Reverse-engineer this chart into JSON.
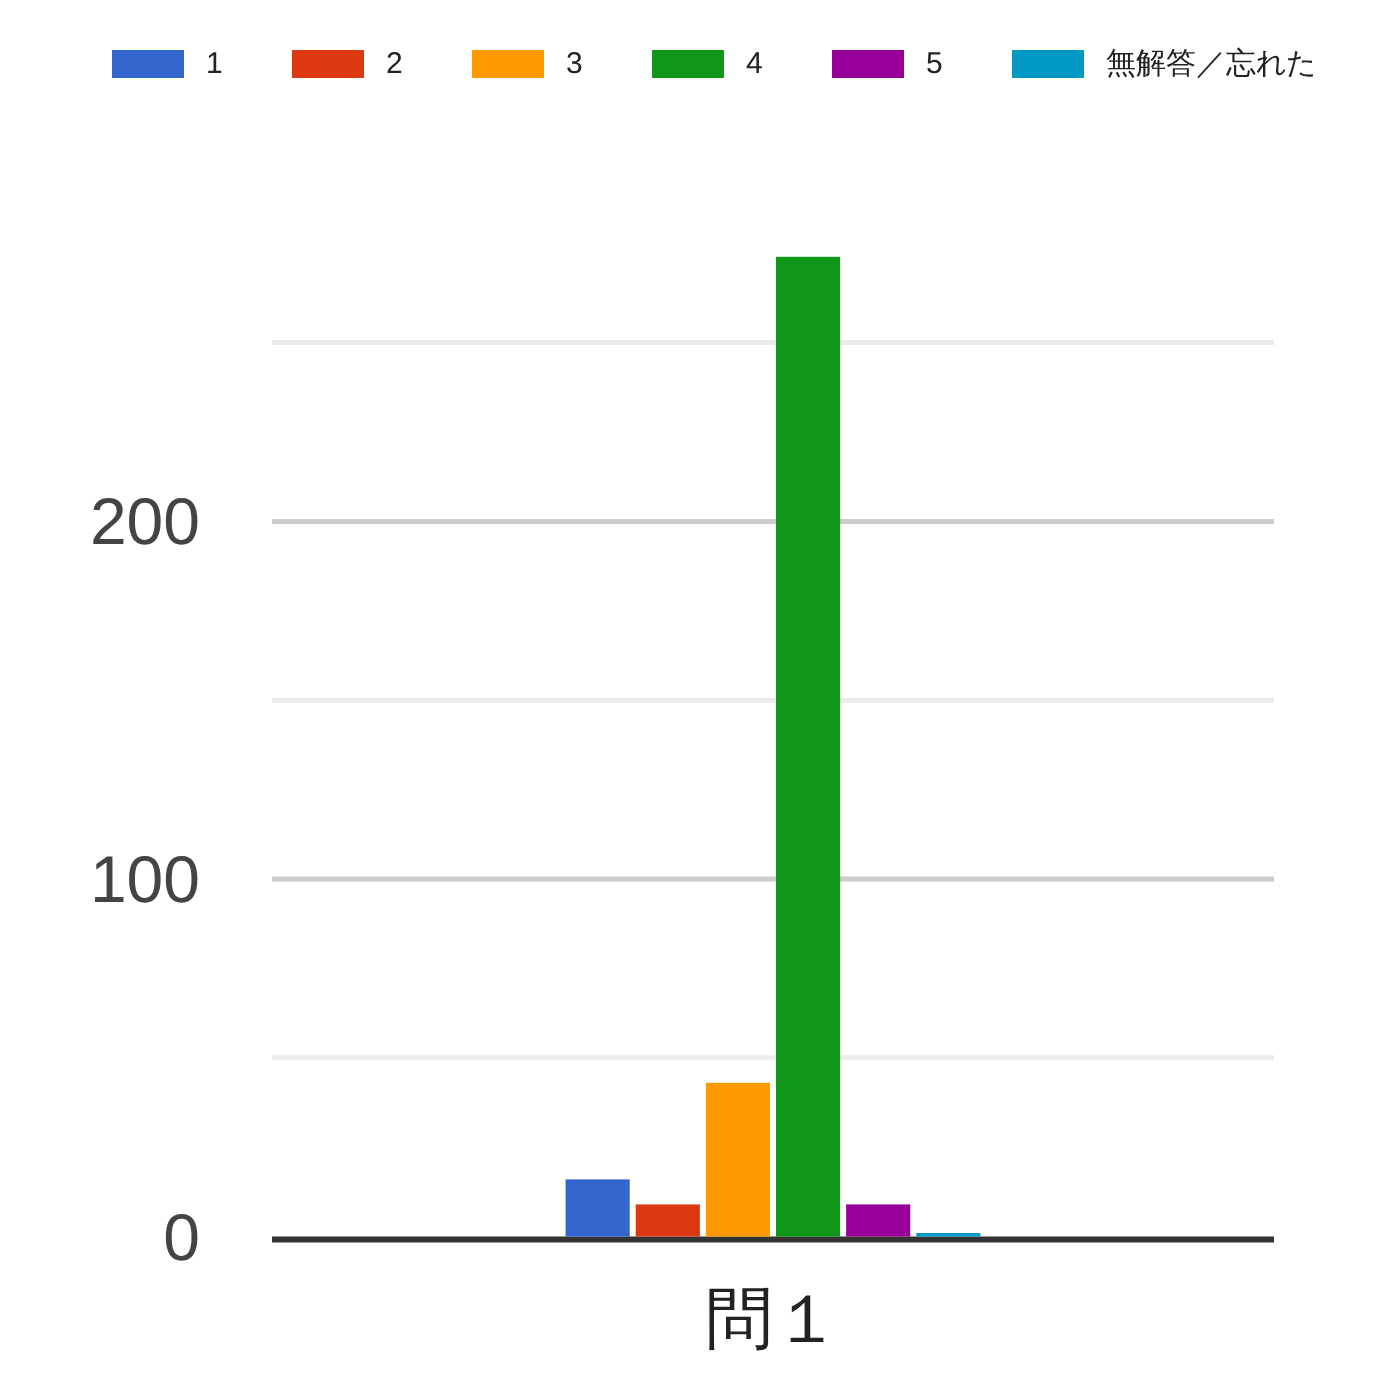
{
  "chart_data": {
    "type": "bar",
    "categories": [
      "問１"
    ],
    "series": [
      {
        "name": "1",
        "color": "#3366cc",
        "values": [
          16
        ]
      },
      {
        "name": "2",
        "color": "#dc3912",
        "values": [
          9
        ]
      },
      {
        "name": "3",
        "color": "#ff9900",
        "values": [
          43
        ]
      },
      {
        "name": "4",
        "color": "#109618",
        "values": [
          274
        ]
      },
      {
        "name": "5",
        "color": "#990099",
        "values": [
          9
        ]
      },
      {
        "name": "無解答／忘れた",
        "color": "#0099c6",
        "values": [
          1
        ]
      }
    ],
    "ylim": [
      0,
      274
    ],
    "yticks": [
      0,
      {
        "value": 50,
        "label": null
      },
      100,
      {
        "value": 150,
        "label": null
      },
      200,
      {
        "value": 250,
        "label": null
      }
    ],
    "grid": "y",
    "legend": "top"
  }
}
